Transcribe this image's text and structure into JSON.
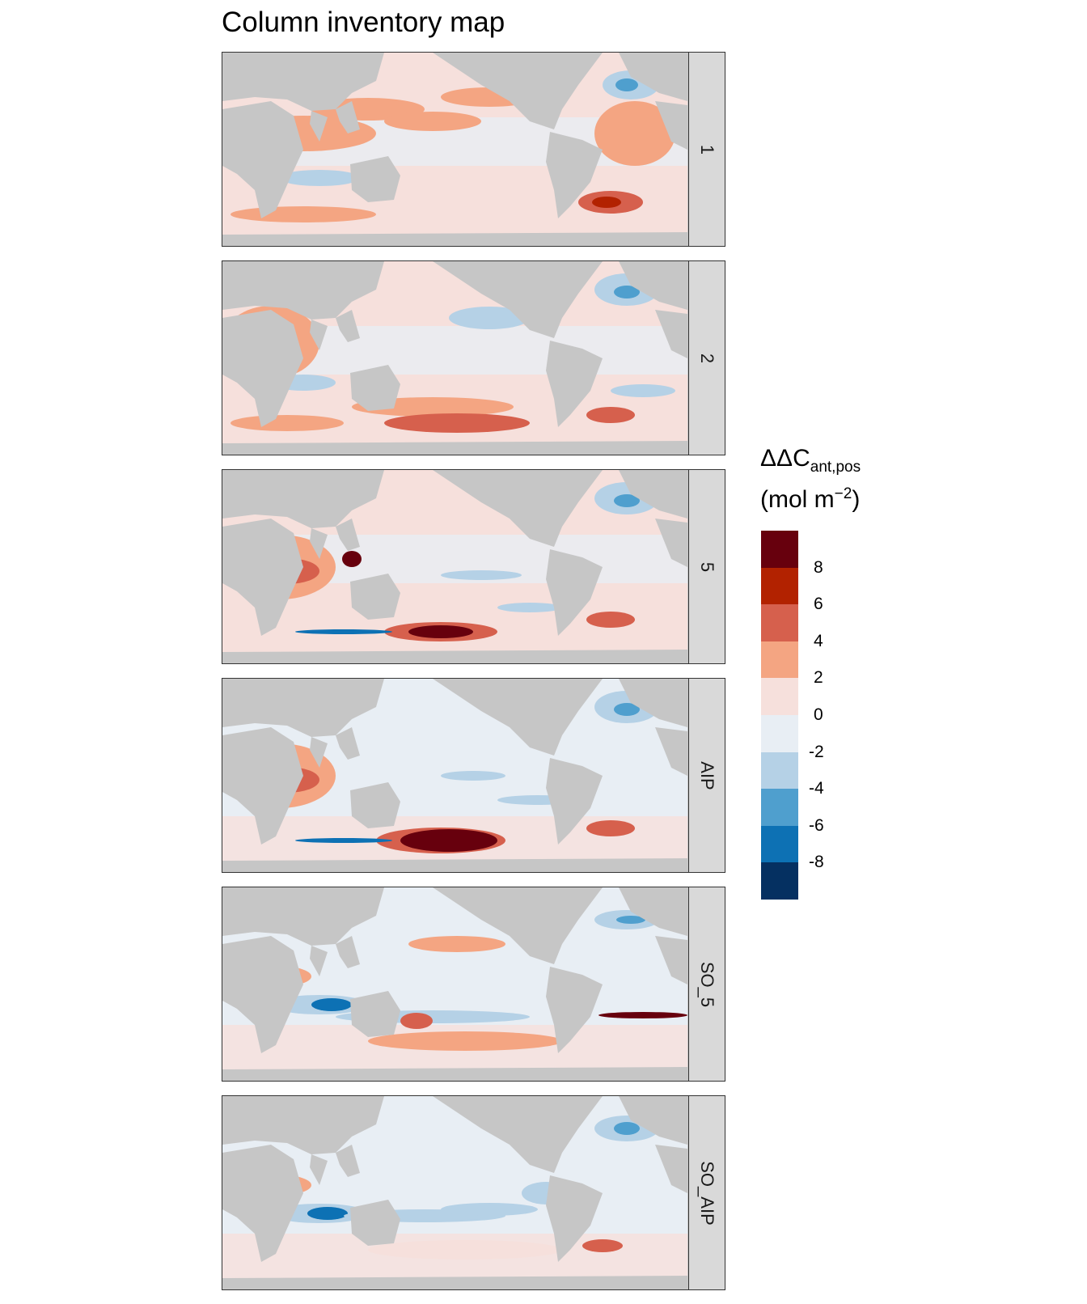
{
  "title": "Column inventory map",
  "panels": [
    {
      "label": "1"
    },
    {
      "label": "2"
    },
    {
      "label": "5"
    },
    {
      "label": "AIP"
    },
    {
      "label": "SO_5"
    },
    {
      "label": "SO_AIP"
    }
  ],
  "legend": {
    "title_main": "ΔΔC",
    "title_sub": "ant,pos",
    "unit_prefix": "(mol m",
    "unit_sup": "−2",
    "unit_suffix": ")",
    "tick_labels": [
      "8",
      "6",
      "4",
      "2",
      "0",
      "-2",
      "-4",
      "-6",
      "-8"
    ],
    "colors": [
      "#67000d",
      "#b22200",
      "#d6604d",
      "#f4a582",
      "#f6e0dc",
      "#e8eef4",
      "#b5d1e6",
      "#4f9fce",
      "#0d71b4",
      "#053061"
    ]
  },
  "colors": {
    "land": "#c6c6c6",
    "strip": "#d9d9d9",
    "ocean_neutral_pos": "#f6e0dc",
    "ocean_neutral_neg": "#e8eef4"
  }
}
